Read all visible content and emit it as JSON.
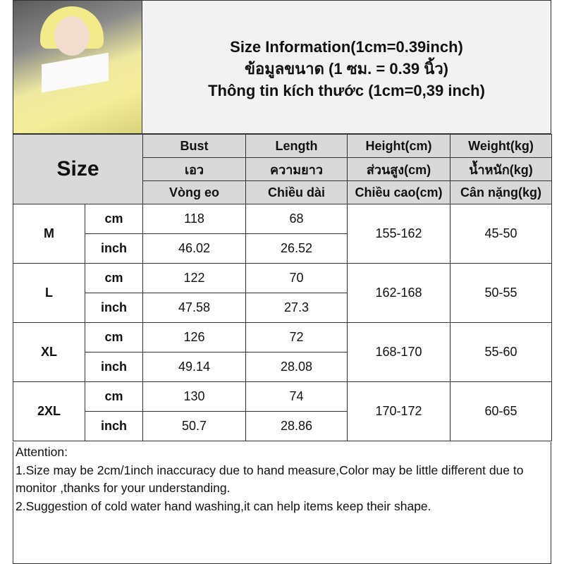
{
  "title": {
    "line1": "Size Information(1cm=0.39inch)",
    "line2": "ข้อมูลขนาด (1 ซม. = 0.39 นิ้ว)",
    "line3": "Thông tin kích thước (1cm=0,39 inch)"
  },
  "table": {
    "size_label": "Size",
    "headers": [
      [
        "Bust",
        "Length",
        "Height(cm)",
        "Weight(kg)"
      ],
      [
        "เอว",
        "ความยาว",
        "ส่วนสูง(cm)",
        "น้ำหนัก(kg)"
      ],
      [
        "Vòng eo",
        "Chiều dài",
        "Chiều cao(cm)",
        "Cân nặng(kg)"
      ]
    ],
    "rows": [
      {
        "size": "M",
        "cm": {
          "unit": "cm",
          "bust": "118",
          "length": "68"
        },
        "inch": {
          "unit": "inch",
          "bust": "46.02",
          "length": "26.52"
        },
        "height": "155-162",
        "weight": "45-50"
      },
      {
        "size": "L",
        "cm": {
          "unit": "cm",
          "bust": "122",
          "length": "70"
        },
        "inch": {
          "unit": "inch",
          "bust": "47.58",
          "length": "27.3"
        },
        "height": "162-168",
        "weight": "50-55"
      },
      {
        "size": "XL",
        "cm": {
          "unit": "cm",
          "bust": "126",
          "length": "72"
        },
        "inch": {
          "unit": "inch",
          "bust": "49.14",
          "length": "28.08"
        },
        "height": "168-170",
        "weight": "55-60"
      },
      {
        "size": "2XL",
        "cm": {
          "unit": "cm",
          "bust": "130",
          "length": "74"
        },
        "inch": {
          "unit": "inch",
          "bust": "50.7",
          "length": "28.86"
        },
        "height": "170-172",
        "weight": "60-65"
      }
    ]
  },
  "attention": {
    "heading": "Attention:",
    "line1": "1.Size may be 2cm/1inch inaccuracy due to hand measure,Color may be little different due to monitor ,thanks for your understanding.",
    "line2": "2.Suggestion of cold water hand washing,it can help items keep their shape."
  }
}
